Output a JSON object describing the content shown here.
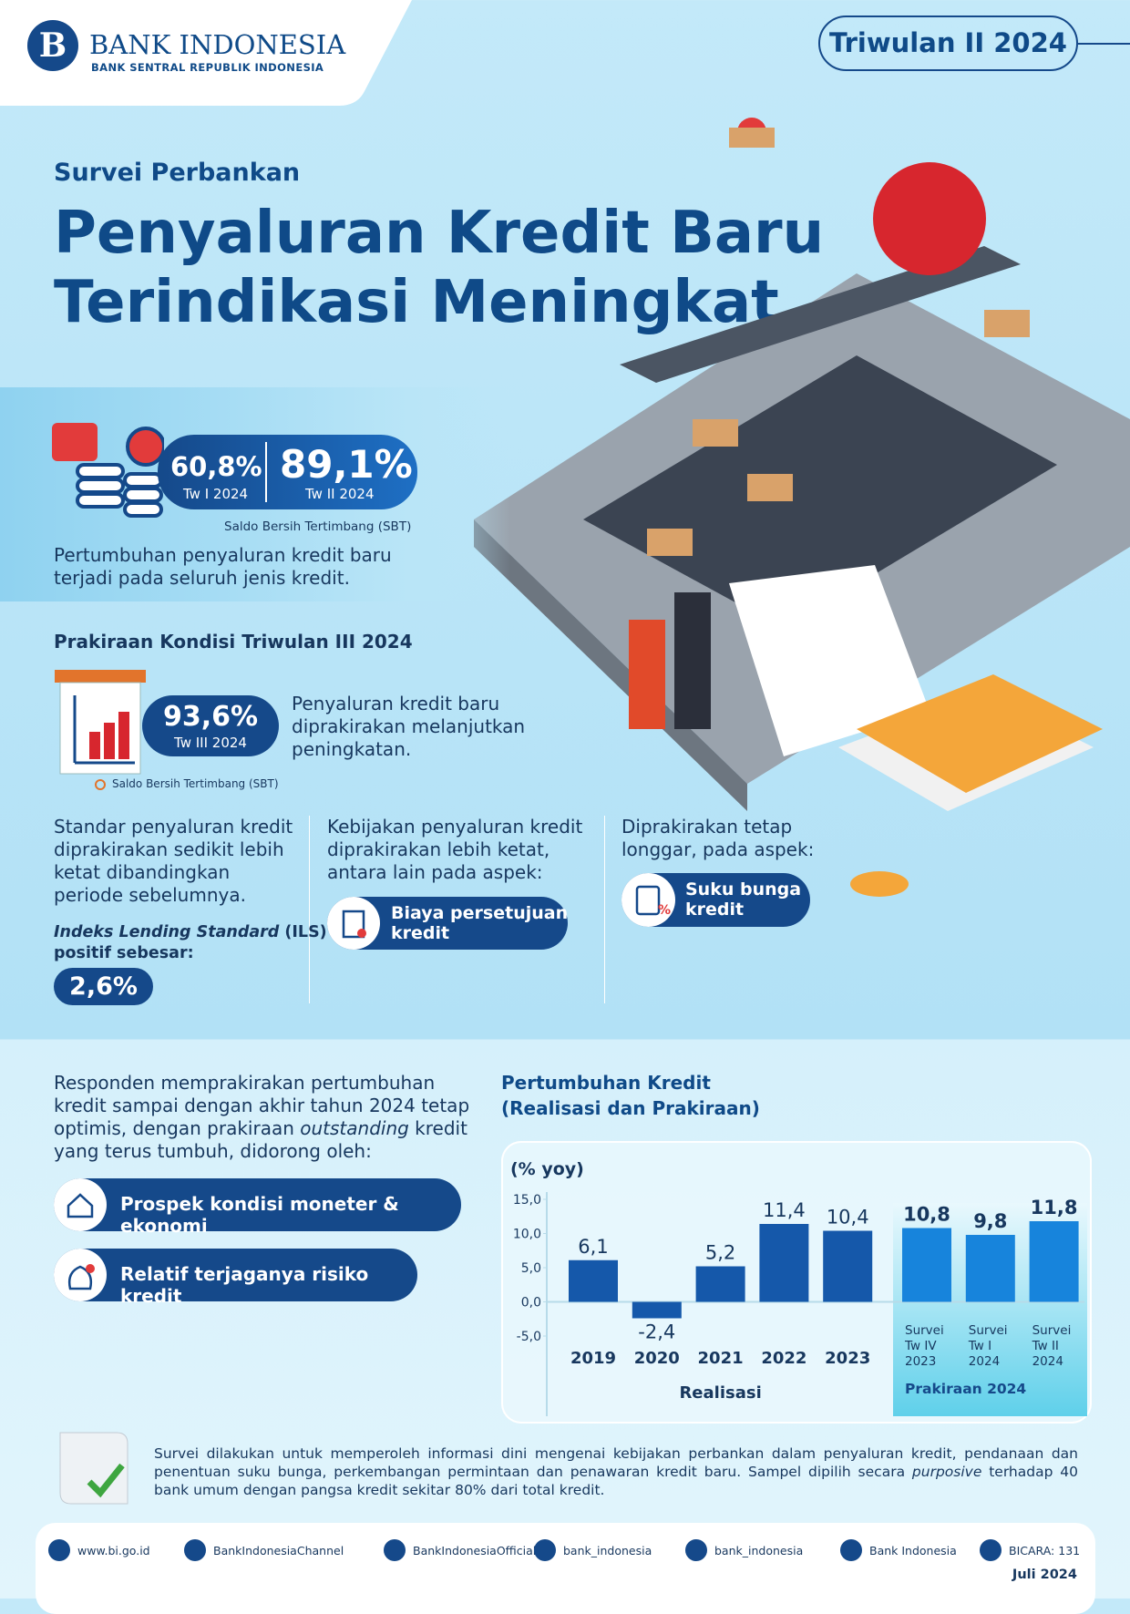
{
  "header": {
    "logo_name": "BANK INDONESIA",
    "logo_tagline": "BANK SENTRAL REPUBLIK INDONESIA",
    "period": "Triwulan II 2024"
  },
  "title": {
    "kicker": "Survei Perbankan",
    "lines": [
      "Penyaluran Kredit Baru",
      "Terindikasi Meningkat"
    ]
  },
  "sbt": {
    "items": [
      {
        "value": "60,8%",
        "label": "Tw I 2024"
      },
      {
        "value": "89,1%",
        "label": "Tw II 2024"
      }
    ],
    "note": "Saldo Bersih Tertimbang (SBT)",
    "text_lines": [
      "Pertumbuhan penyaluran kredit baru",
      "terjadi pada seluruh jenis kredit."
    ]
  },
  "forecast": {
    "heading": "Prakiraan Kondisi Triwulan III 2024",
    "value": "93,6%",
    "label": "Tw III 2024",
    "note": "Saldo Bersih Tertimbang (SBT)",
    "text_lines": [
      "Penyaluran kredit baru",
      "diprakirakan melanjutkan",
      "peningkatan."
    ]
  },
  "columns": [
    {
      "text_lines": [
        "Standar penyaluran kredit",
        "diprakirakan sedikit lebih",
        "ketat dibandingkan",
        "periode sebelumnya."
      ],
      "ils_italic": "Indeks Lending Standard",
      "ils_rest": " (ILS)",
      "ils_line2": "positif sebesar:",
      "ils_value": "2,6%"
    },
    {
      "text_lines": [
        "Kebijakan penyaluran kredit",
        "diprakirakan lebih ketat,",
        "antara lain pada aspek:"
      ],
      "pill_lines": [
        "Biaya persetujuan",
        "kredit"
      ]
    },
    {
      "text_lines": [
        "Diprakirakan tetap",
        "longgar, pada aspek:"
      ],
      "pill_lines": [
        "Suku bunga",
        "kredit"
      ]
    }
  ],
  "outlook": {
    "lines": [
      "Responden memprakirakan pertumbuhan",
      "kredit sampai dengan akhir tahun 2024 tetap"
    ],
    "line3": [
      "optimis, dengan prakiraan ",
      "outstanding",
      " kredit"
    ],
    "line4": "yang terus tumbuh, didorong oleh:",
    "drivers": [
      "Prospek kondisi moneter & ekonomi",
      "Relatif terjaganya risiko kredit"
    ]
  },
  "chart": {
    "type": "bar",
    "title_lines": [
      "Pertumbuhan Kredit",
      "(Realisasi dan Prakiraan)"
    ],
    "y_label": "(% yoy)",
    "categories": [
      "2019",
      "2020",
      "2021",
      "2022",
      "2023",
      "Survei Tw IV 2023",
      "Survei Tw I 2024",
      "Survei Tw II 2024"
    ],
    "ylim": [
      -5,
      15
    ],
    "yticks": [
      {
        "value": 15,
        "label": "15,0"
      },
      {
        "value": 10,
        "label": "10,0"
      },
      {
        "value": 5,
        "label": "5,0"
      },
      {
        "value": 0,
        "label": "0,0"
      },
      {
        "value": -5,
        "label": "-5,0"
      }
    ],
    "series": [
      {
        "name": "Realisasi",
        "color": "#1558aa",
        "values": [
          6.1,
          -2.4,
          5.2,
          11.4,
          10.4,
          null,
          null,
          null
        ],
        "value_labels": [
          "6,1",
          "-2,4",
          "5,2",
          "11,4",
          "10,4",
          null,
          null,
          null
        ]
      },
      {
        "name": "Prakiraan 2024",
        "color": "#1784dc",
        "values": [
          null,
          null,
          null,
          null,
          null,
          10.8,
          9.8,
          11.8
        ],
        "value_labels": [
          null,
          null,
          null,
          null,
          null,
          "10,8",
          "9,8",
          "11,8"
        ]
      }
    ]
  },
  "footnote": {
    "before": "Survei dilakukan untuk memperoleh informasi dini mengenai kebijakan perbankan dalam penyaluran kredit, pendanaan dan penentuan suku bunga, perkembangan permintaan dan penawaran kredit baru. Sampel dipilih secara ",
    "italic": "purposive",
    "after": " terhadap 40 bank umum dengan pangsa kredit sekitar 80% dari total kredit."
  },
  "footer": {
    "links": [
      "www.bi.go.id",
      "BankIndonesiaChannel",
      "BankIndonesiaOfficial",
      "bank_indonesia",
      "bank_indonesia",
      "Bank Indonesia",
      "BICARA: 131"
    ],
    "date": "Juli 2024"
  }
}
